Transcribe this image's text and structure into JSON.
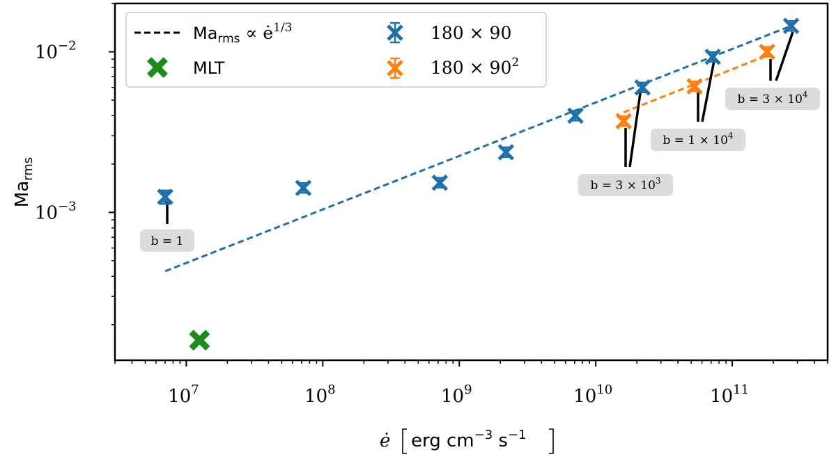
{
  "chart_data": {
    "type": "scatter",
    "xscale": "log",
    "yscale": "log",
    "xlim": [
      3000000,
      500000000000
    ],
    "ylim": [
      0.00012,
      0.02
    ],
    "xticks": [
      {
        "value": 10000000,
        "base": "10",
        "exp": "7"
      },
      {
        "value": 100000000,
        "base": "10",
        "exp": "8"
      },
      {
        "value": 1000000000,
        "base": "10",
        "exp": "9"
      },
      {
        "value": 10000000000,
        "base": "10",
        "exp": "10"
      },
      {
        "value": 100000000000,
        "base": "10",
        "exp": "11"
      }
    ],
    "yticks": [
      {
        "value": 0.01,
        "base": "10",
        "exp": "−2"
      },
      {
        "value": 0.001,
        "base": "10",
        "exp": "−3"
      }
    ],
    "xlabel": {
      "symbol": "ė",
      "units": "erg cm",
      "exp1": "−3",
      "mid": " s",
      "exp2": "−1"
    },
    "ylabel": {
      "main": "Ma",
      "sub": "rms"
    },
    "legend": {
      "placement": "top-left",
      "fit_main": "Ma",
      "fit_sub": "rms",
      "fit_rel": " ∝ ė",
      "fit_exp": "1/3",
      "mlt": "MLT",
      "s1": "180 × 90",
      "s2_base": "180 × 90",
      "s2_exp": "2"
    },
    "series": [
      {
        "name": "180 × 90",
        "color": "#1f6fa8",
        "points": [
          {
            "x": 7000000,
            "y": 0.00125,
            "err": 0.00012
          },
          {
            "x": 72000000,
            "y": 0.00142
          },
          {
            "x": 720000000,
            "y": 0.00153
          },
          {
            "x": 2200000000,
            "y": 0.00237
          },
          {
            "x": 7100000000,
            "y": 0.004
          },
          {
            "x": 22000000000,
            "y": 0.006
          },
          {
            "x": 72000000000,
            "y": 0.0093
          },
          {
            "x": 270000000000,
            "y": 0.0145
          }
        ]
      },
      {
        "name": "180 × 90²",
        "color": "#ff7f0e",
        "points": [
          {
            "x": 16000000000,
            "y": 0.0037
          },
          {
            "x": 53000000000,
            "y": 0.0061
          },
          {
            "x": 180000000000,
            "y": 0.01
          }
        ]
      },
      {
        "name": "MLT",
        "color": "#1e8a1e",
        "points": [
          {
            "x": 12500000,
            "y": 0.00016
          }
        ]
      }
    ],
    "fits": [
      {
        "name": "fit-180x90",
        "color": "#1f6fa8",
        "x": [
          7000000,
          270000000000
        ],
        "y": [
          0.00043,
          0.0145
        ]
      },
      {
        "name": "fit-180x90sq",
        "color": "#ff7f0e",
        "x": [
          16000000000,
          180000000000
        ],
        "y": [
          0.0042,
          0.0095
        ]
      }
    ],
    "annotations": [
      {
        "text": "b = 1",
        "mantissa": "",
        "exp": "",
        "x": 7000000,
        "y": 0.00125
      },
      {
        "text": "b = 3 × 10",
        "mantissa": "3",
        "exp": "3",
        "x": 16000000000,
        "y": 0.0037
      },
      {
        "text": "b = 1 × 10",
        "mantissa": "1",
        "exp": "4",
        "x": 53000000000,
        "y": 0.0061
      },
      {
        "text": "b = 3 × 10",
        "mantissa": "3",
        "exp": "4",
        "x": 180000000000,
        "y": 0.01
      }
    ]
  }
}
